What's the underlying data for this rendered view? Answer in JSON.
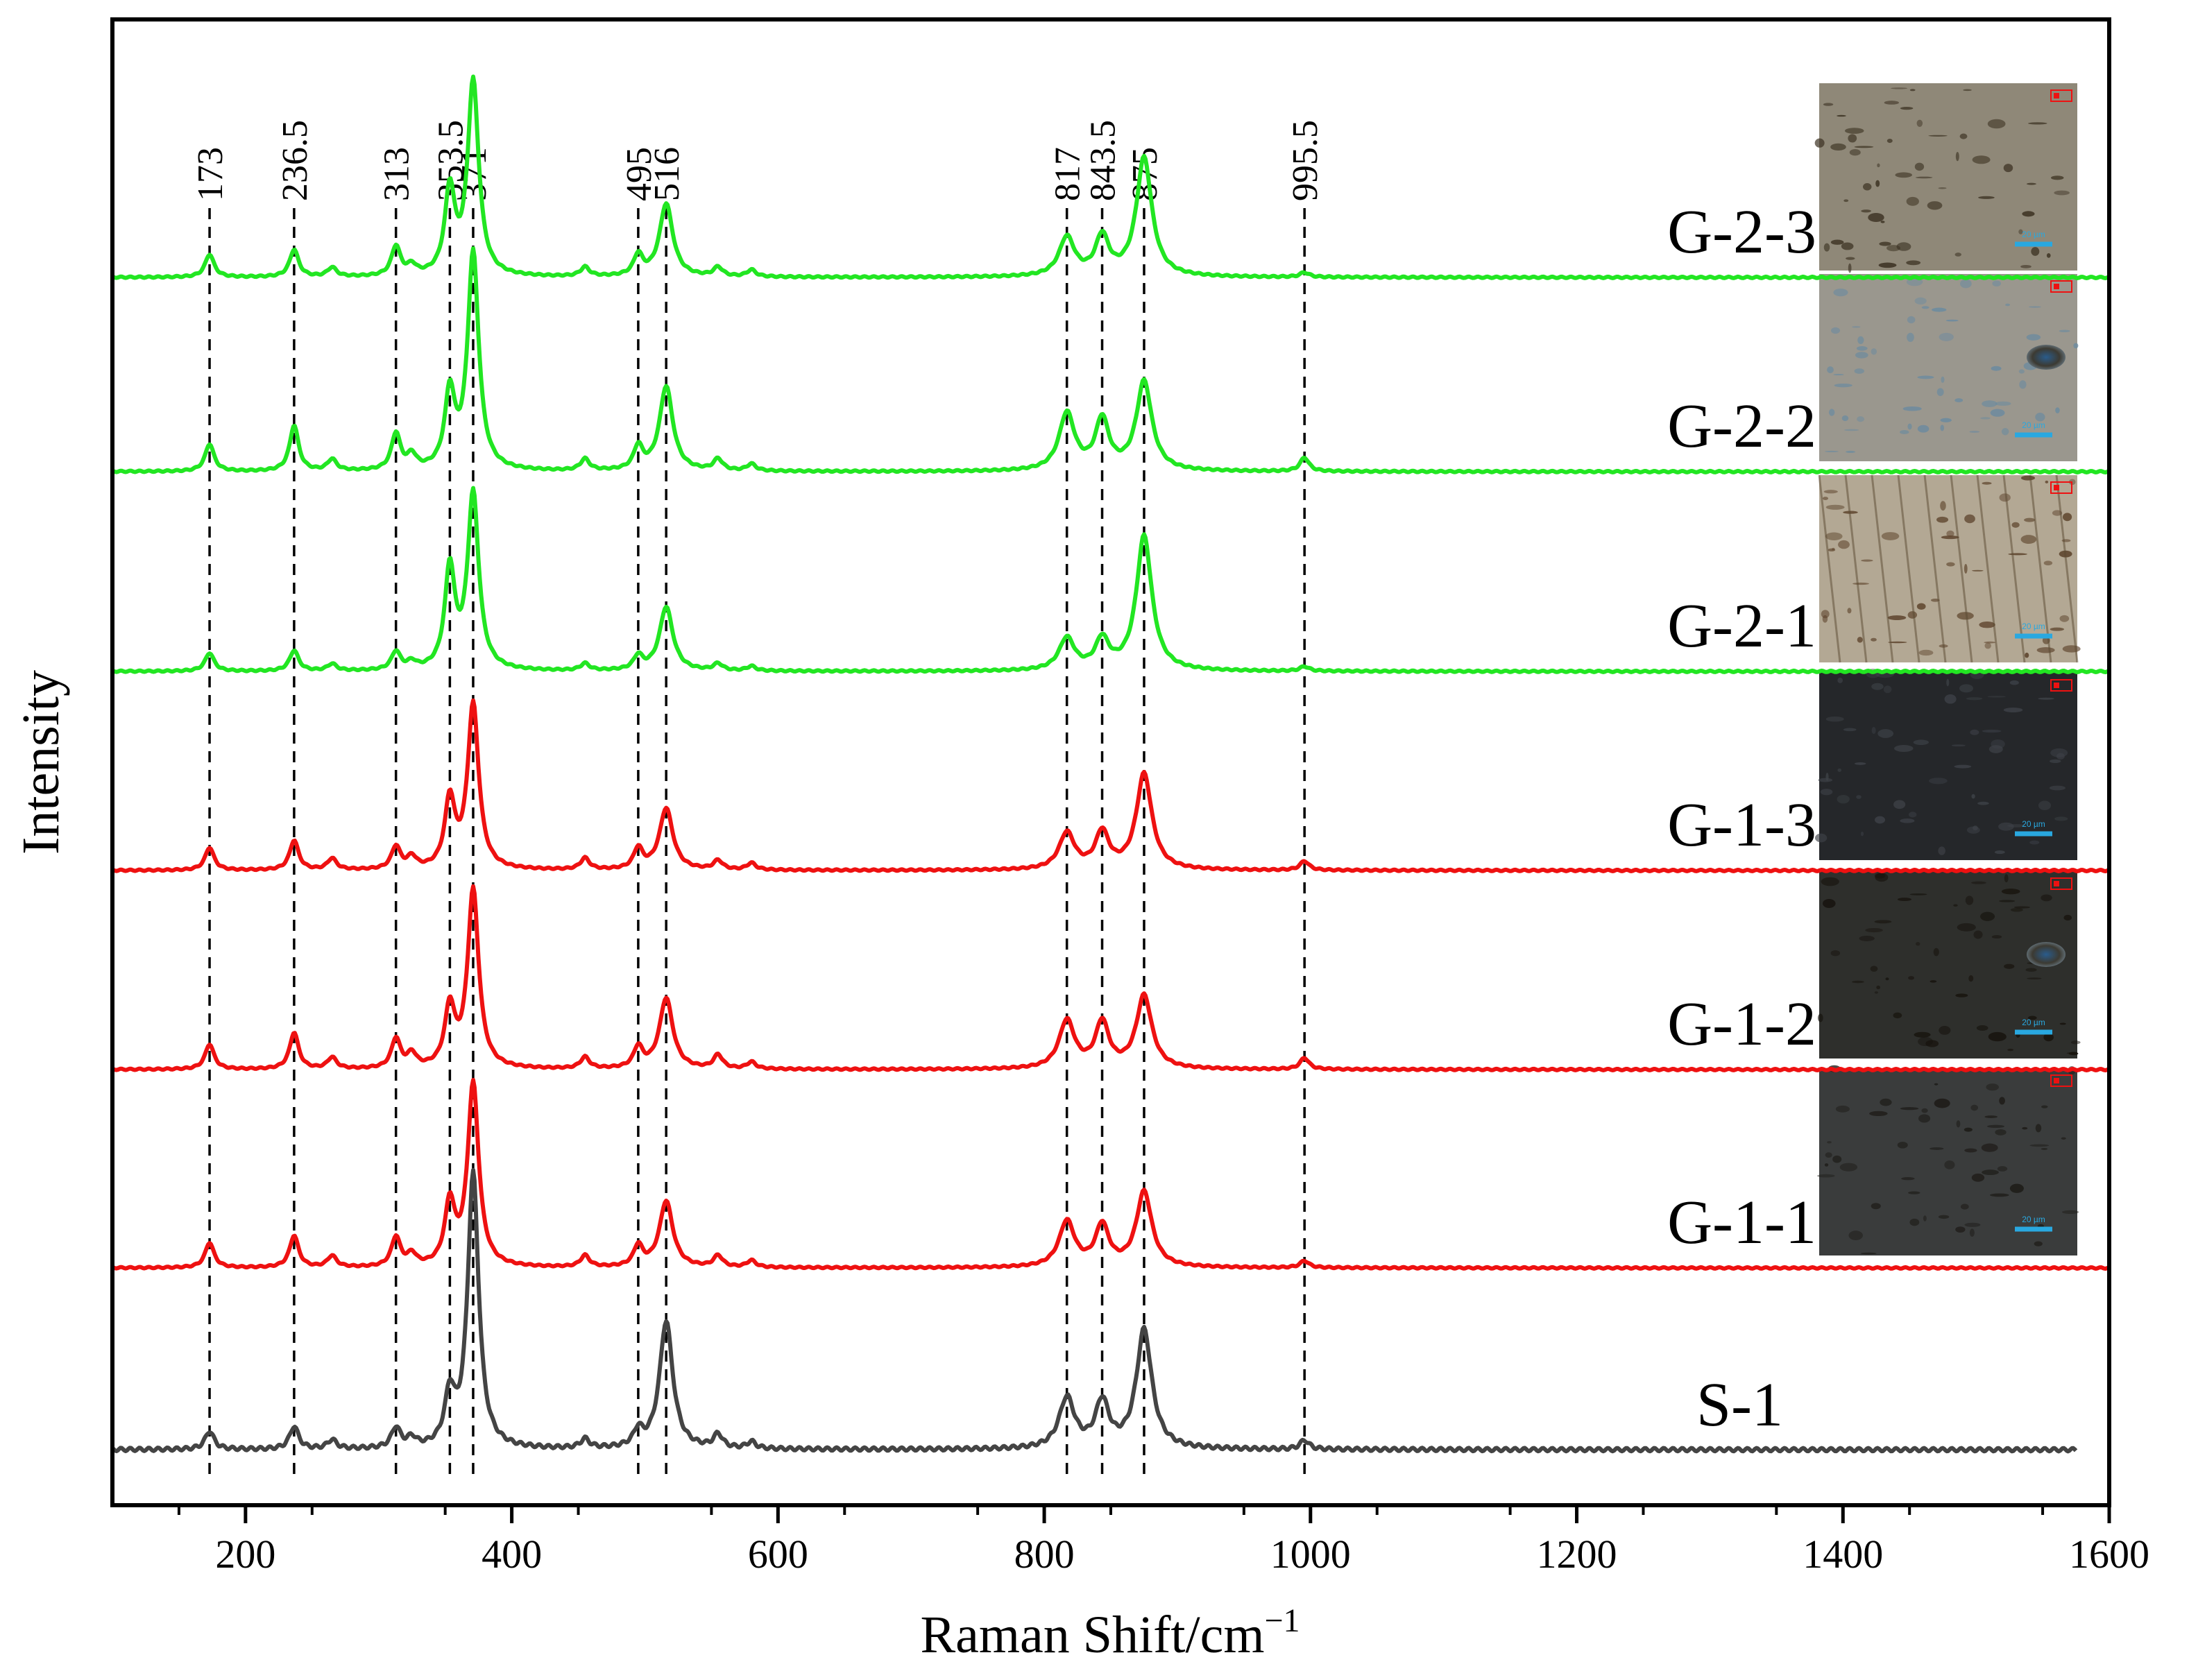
{
  "chart_data": {
    "type": "line",
    "title": "",
    "xlabel": "Raman Shift/cm",
    "xlabel_sup": "−1",
    "ylabel": "Intensity",
    "xlim": [
      100,
      1600
    ],
    "x_ticks": [
      200,
      400,
      600,
      800,
      1000,
      1200,
      1400,
      1600
    ],
    "x_tick_labels": [
      "200",
      "400",
      "600",
      "800",
      "1000",
      "1200",
      "1400",
      "1600"
    ],
    "grid": false,
    "peak_markers": [
      {
        "label": "173",
        "x": 173
      },
      {
        "label": "236.5",
        "x": 236.5
      },
      {
        "label": "313",
        "x": 313
      },
      {
        "label": "353.5",
        "x": 353.5
      },
      {
        "label": "371",
        "x": 371
      },
      {
        "label": "495",
        "x": 495
      },
      {
        "label": "516",
        "x": 516
      },
      {
        "label": "817",
        "x": 817
      },
      {
        "label": "843.5",
        "x": 843.5
      },
      {
        "label": "875",
        "x": 875
      },
      {
        "label": "995.5",
        "x": 995.5
      }
    ],
    "series": [
      {
        "name": "G-2-3",
        "color": "#22e622",
        "x_range": [
          100,
          1600
        ],
        "peaks": [
          [
            173,
            0.1
          ],
          [
            236.5,
            0.12
          ],
          [
            265,
            0.04
          ],
          [
            313,
            0.13
          ],
          [
            325,
            0.04
          ],
          [
            353.5,
            0.37
          ],
          [
            371,
            0.85
          ],
          [
            455,
            0.04
          ],
          [
            495,
            0.09
          ],
          [
            516,
            0.32
          ],
          [
            555,
            0.04
          ],
          [
            580,
            0.03
          ],
          [
            817,
            0.17
          ],
          [
            843.5,
            0.17
          ],
          [
            875,
            0.52
          ],
          [
            995.5,
            0.02
          ]
        ]
      },
      {
        "name": "G-2-2",
        "color": "#22e622",
        "x_range": [
          100,
          1600
        ],
        "peaks": [
          [
            173,
            0.12
          ],
          [
            236.5,
            0.2
          ],
          [
            265,
            0.05
          ],
          [
            313,
            0.16
          ],
          [
            325,
            0.06
          ],
          [
            353.5,
            0.33
          ],
          [
            371,
            0.95
          ],
          [
            455,
            0.05
          ],
          [
            495,
            0.1
          ],
          [
            516,
            0.37
          ],
          [
            555,
            0.05
          ],
          [
            580,
            0.03
          ],
          [
            817,
            0.25
          ],
          [
            843.5,
            0.22
          ],
          [
            875,
            0.39
          ],
          [
            995.5,
            0.06
          ]
        ]
      },
      {
        "name": "G-2-1",
        "color": "#22e622",
        "x_range": [
          100,
          1600
        ],
        "peaks": [
          [
            173,
            0.08
          ],
          [
            236.5,
            0.09
          ],
          [
            265,
            0.03
          ],
          [
            313,
            0.08
          ],
          [
            325,
            0.03
          ],
          [
            353.5,
            0.44
          ],
          [
            371,
            0.77
          ],
          [
            455,
            0.03
          ],
          [
            495,
            0.06
          ],
          [
            516,
            0.28
          ],
          [
            555,
            0.03
          ],
          [
            580,
            0.02
          ],
          [
            817,
            0.14
          ],
          [
            843.5,
            0.13
          ],
          [
            875,
            0.59
          ],
          [
            995.5,
            0.02
          ]
        ]
      },
      {
        "name": "G-1-3",
        "color": "#ee1111",
        "x_range": [
          100,
          1600
        ],
        "peaks": [
          [
            173,
            0.1
          ],
          [
            236.5,
            0.13
          ],
          [
            265,
            0.05
          ],
          [
            313,
            0.1
          ],
          [
            325,
            0.05
          ],
          [
            353.5,
            0.3
          ],
          [
            371,
            0.72
          ],
          [
            455,
            0.05
          ],
          [
            495,
            0.09
          ],
          [
            516,
            0.27
          ],
          [
            555,
            0.04
          ],
          [
            580,
            0.03
          ],
          [
            817,
            0.16
          ],
          [
            843.5,
            0.16
          ],
          [
            875,
            0.42
          ],
          [
            995.5,
            0.04
          ]
        ]
      },
      {
        "name": "G-1-2",
        "color": "#ee1111",
        "x_range": [
          100,
          1600
        ],
        "peaks": [
          [
            173,
            0.11
          ],
          [
            236.5,
            0.16
          ],
          [
            265,
            0.05
          ],
          [
            313,
            0.13
          ],
          [
            325,
            0.06
          ],
          [
            353.5,
            0.26
          ],
          [
            371,
            0.78
          ],
          [
            455,
            0.05
          ],
          [
            495,
            0.09
          ],
          [
            516,
            0.31
          ],
          [
            555,
            0.06
          ],
          [
            580,
            0.03
          ],
          [
            817,
            0.21
          ],
          [
            843.5,
            0.2
          ],
          [
            875,
            0.32
          ],
          [
            995.5,
            0.05
          ]
        ]
      },
      {
        "name": "G-1-1",
        "color": "#ee1111",
        "x_range": [
          100,
          1600
        ],
        "peaks": [
          [
            173,
            0.11
          ],
          [
            236.5,
            0.14
          ],
          [
            265,
            0.05
          ],
          [
            313,
            0.13
          ],
          [
            325,
            0.05
          ],
          [
            353.5,
            0.27
          ],
          [
            371,
            0.8
          ],
          [
            455,
            0.05
          ],
          [
            495,
            0.09
          ],
          [
            516,
            0.29
          ],
          [
            555,
            0.05
          ],
          [
            580,
            0.03
          ],
          [
            817,
            0.2
          ],
          [
            843.5,
            0.18
          ],
          [
            875,
            0.33
          ],
          [
            995.5,
            0.03
          ]
        ]
      },
      {
        "name": "S-1",
        "color": "#444444",
        "x_range": [
          100,
          1575
        ],
        "peaks": [
          [
            173,
            0.08
          ],
          [
            236.5,
            0.1
          ],
          [
            265,
            0.04
          ],
          [
            313,
            0.09
          ],
          [
            325,
            0.04
          ],
          [
            353.5,
            0.22
          ],
          [
            371,
            1.2
          ],
          [
            455,
            0.04
          ],
          [
            495,
            0.07
          ],
          [
            516,
            0.56
          ],
          [
            555,
            0.06
          ],
          [
            580,
            0.03
          ],
          [
            817,
            0.22
          ],
          [
            843.5,
            0.2
          ],
          [
            875,
            0.52
          ],
          [
            995.5,
            0.04
          ]
        ]
      }
    ],
    "insets": [
      {
        "for": "G-2-3",
        "scale_text": "20 µm"
      },
      {
        "for": "G-2-2",
        "scale_text": "20 µm"
      },
      {
        "for": "G-2-1",
        "scale_text": "20 µm"
      },
      {
        "for": "G-1-3",
        "scale_text": "20 µm"
      },
      {
        "for": "G-1-2",
        "scale_text": "20 µm"
      },
      {
        "for": "G-1-1",
        "scale_text": "20 µm"
      }
    ],
    "colors": {
      "green": "#22e622",
      "red": "#ee1111",
      "gray": "#444444",
      "scale": "#29a8e0"
    }
  }
}
